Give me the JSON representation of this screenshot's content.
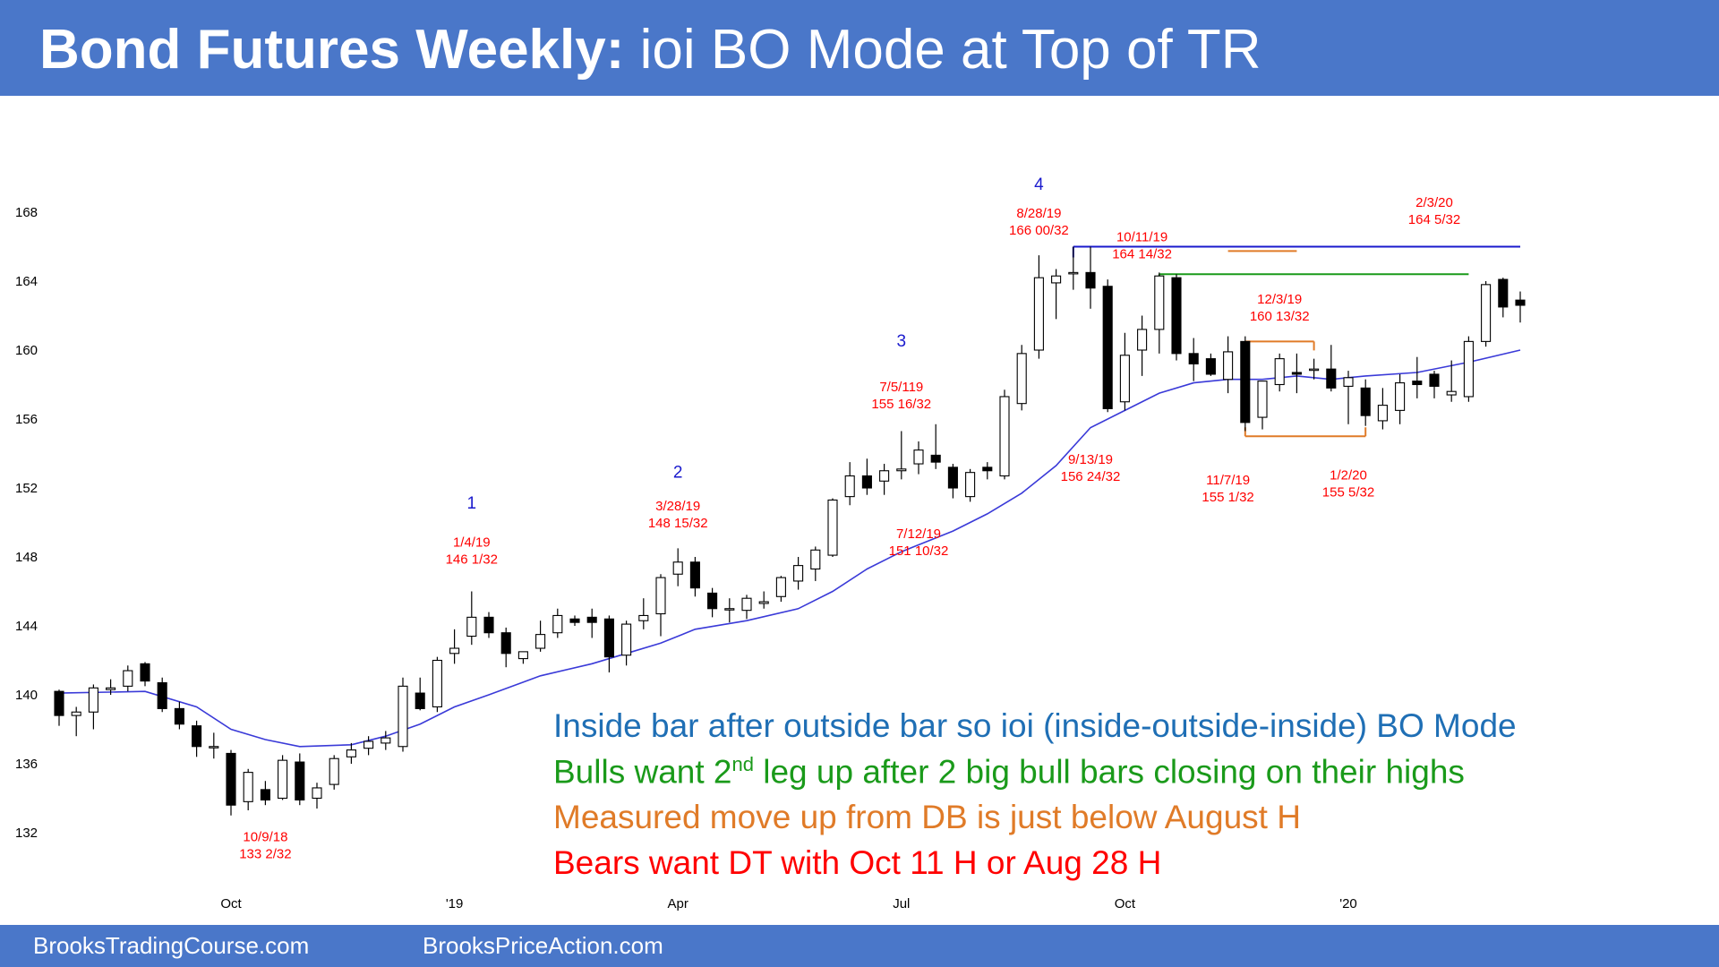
{
  "header": {
    "title_bold": "Bond Futures Weekly:",
    "title_rest": "ioi BO Mode at Top of TR"
  },
  "footer": {
    "link_left": "BrooksTradingCourse.com",
    "link_right": "BrooksPriceAction.com"
  },
  "commentary": {
    "line1": "Inside bar after outside bar so ioi (inside-outside-inside) BO Mode",
    "line2_pre": "Bulls want 2",
    "line2_sup": "nd",
    "line2_post": " leg up after 2 big bull bars closing on their highs",
    "line3": "Measured move up from DB is just below August H",
    "line4": "Bears want DT with Oct 11 H or Aug 28 H",
    "colors": {
      "line1": "#1f6fb5",
      "line2": "#1a9a1a",
      "line3": "#e07b28",
      "line4": "#ff0000"
    }
  },
  "chart_data": {
    "type": "candlestick",
    "title": "Bond Futures Weekly",
    "ylim": [
      130,
      171
    ],
    "yticks": [
      132,
      136,
      140,
      144,
      148,
      152,
      156,
      160,
      164,
      168
    ],
    "xticks": [
      {
        "label": "Oct",
        "bar": 10
      },
      {
        "label": "'19",
        "bar": 23
      },
      {
        "label": "Apr",
        "bar": 36
      },
      {
        "label": "Jul",
        "bar": 49
      },
      {
        "label": "Oct",
        "bar": 62
      },
      {
        "label": "'20",
        "bar": 75
      }
    ],
    "colors": {
      "bar": "#000000",
      "ema": "#3a3ad8",
      "annotation": "#ff0000",
      "leg_number": "#1a1acd",
      "resistance_aug": "#1a1acd",
      "resistance_oct": "#1a9a1a",
      "range": "#e07b28"
    },
    "bars": [
      [
        140.2,
        140.3,
        138.2,
        138.8
      ],
      [
        138.8,
        139.3,
        137.6,
        139.0
      ],
      [
        139.0,
        140.6,
        138.0,
        140.4
      ],
      [
        140.3,
        140.9,
        140.0,
        140.4
      ],
      [
        140.5,
        141.7,
        140.2,
        141.4
      ],
      [
        141.8,
        141.9,
        140.5,
        140.8
      ],
      [
        140.7,
        141.0,
        139.0,
        139.2
      ],
      [
        139.2,
        139.6,
        138.0,
        138.3
      ],
      [
        138.2,
        138.5,
        136.4,
        137.0
      ],
      [
        137.0,
        137.8,
        136.3,
        137.0
      ],
      [
        136.6,
        136.8,
        133.0,
        133.6
      ],
      [
        133.8,
        135.7,
        133.3,
        135.5
      ],
      [
        134.5,
        135.0,
        133.6,
        133.9
      ],
      [
        134.0,
        136.5,
        133.9,
        136.2
      ],
      [
        136.1,
        136.6,
        133.6,
        133.9
      ],
      [
        134.0,
        134.9,
        133.4,
        134.6
      ],
      [
        134.8,
        136.5,
        134.5,
        136.3
      ],
      [
        136.4,
        137.2,
        136.0,
        136.8
      ],
      [
        136.9,
        137.6,
        136.5,
        137.3
      ],
      [
        137.2,
        137.9,
        136.8,
        137.5
      ],
      [
        137.0,
        141.0,
        136.7,
        140.5
      ],
      [
        140.1,
        141.0,
        139.1,
        139.2
      ],
      [
        139.3,
        142.2,
        139.0,
        142.0
      ],
      [
        142.4,
        143.8,
        141.8,
        142.7
      ],
      [
        143.4,
        146.0,
        142.9,
        144.5
      ],
      [
        144.5,
        144.8,
        143.3,
        143.6
      ],
      [
        143.6,
        143.9,
        141.6,
        142.4
      ],
      [
        142.1,
        142.5,
        141.8,
        142.5
      ],
      [
        142.7,
        144.3,
        142.5,
        143.5
      ],
      [
        143.6,
        145.0,
        143.3,
        144.6
      ],
      [
        144.4,
        144.6,
        144.0,
        144.2
      ],
      [
        144.5,
        145.0,
        143.3,
        144.2
      ],
      [
        144.4,
        144.6,
        141.3,
        142.2
      ],
      [
        142.3,
        144.3,
        141.7,
        144.1
      ],
      [
        144.3,
        145.6,
        143.8,
        144.6
      ],
      [
        144.7,
        147.0,
        143.4,
        146.8
      ],
      [
        147.0,
        148.5,
        146.3,
        147.7
      ],
      [
        147.7,
        148.0,
        145.7,
        146.2
      ],
      [
        145.9,
        146.2,
        144.5,
        145.0
      ],
      [
        145.0,
        145.6,
        144.2,
        145.0
      ],
      [
        144.9,
        145.8,
        144.4,
        145.6
      ],
      [
        145.3,
        146.0,
        145.0,
        145.4
      ],
      [
        145.7,
        146.9,
        145.4,
        146.8
      ],
      [
        146.6,
        148.0,
        146.1,
        147.5
      ],
      [
        147.3,
        148.6,
        146.6,
        148.4
      ],
      [
        148.1,
        151.4,
        148.0,
        151.3
      ],
      [
        151.5,
        153.5,
        151.0,
        152.7
      ],
      [
        152.7,
        153.7,
        151.6,
        152.0
      ],
      [
        152.4,
        153.4,
        151.6,
        153.0
      ],
      [
        153.0,
        155.3,
        152.5,
        153.1
      ],
      [
        153.4,
        154.7,
        152.8,
        154.2
      ],
      [
        153.9,
        155.7,
        153.1,
        153.5
      ],
      [
        153.2,
        153.4,
        151.4,
        152.0
      ],
      [
        151.5,
        153.1,
        151.2,
        152.9
      ],
      [
        153.2,
        153.5,
        152.5,
        153.0
      ],
      [
        152.7,
        157.7,
        152.5,
        157.3
      ],
      [
        156.9,
        160.3,
        156.5,
        159.8
      ],
      [
        160.0,
        165.5,
        159.5,
        164.2
      ],
      [
        163.9,
        164.7,
        161.8,
        164.3
      ],
      [
        164.5,
        166.0,
        163.5,
        164.5
      ],
      [
        164.5,
        166.0,
        162.4,
        163.6
      ],
      [
        163.7,
        164.1,
        156.4,
        156.6
      ],
      [
        157.0,
        161.0,
        156.5,
        159.7
      ],
      [
        160.0,
        162.0,
        158.5,
        161.2
      ],
      [
        161.2,
        164.5,
        159.8,
        164.3
      ],
      [
        164.2,
        164.4,
        159.4,
        159.8
      ],
      [
        159.8,
        160.7,
        158.2,
        159.2
      ],
      [
        159.5,
        159.8,
        158.5,
        158.6
      ],
      [
        158.3,
        160.8,
        157.5,
        159.9
      ],
      [
        160.5,
        160.8,
        155.3,
        155.8
      ],
      [
        156.1,
        157.8,
        155.4,
        158.2
      ],
      [
        158.0,
        159.8,
        157.6,
        159.5
      ],
      [
        158.7,
        159.8,
        157.5,
        158.6
      ],
      [
        158.9,
        159.5,
        158.3,
        158.9
      ],
      [
        158.9,
        160.3,
        157.6,
        157.8
      ],
      [
        157.9,
        158.8,
        155.7,
        158.4
      ],
      [
        157.8,
        158.3,
        155.6,
        156.2
      ],
      [
        155.9,
        157.8,
        155.4,
        156.8
      ],
      [
        156.5,
        158.6,
        155.7,
        158.1
      ],
      [
        158.2,
        159.6,
        157.2,
        158.0
      ],
      [
        158.6,
        158.8,
        157.2,
        157.9
      ],
      [
        157.4,
        159.4,
        157.0,
        157.6
      ],
      [
        157.3,
        160.8,
        157.0,
        160.5
      ],
      [
        160.5,
        164.0,
        160.2,
        163.8
      ],
      [
        164.1,
        164.2,
        161.9,
        162.5
      ],
      [
        162.9,
        163.4,
        161.6,
        162.6
      ]
    ],
    "ema_20": [
      [
        0,
        140.1
      ],
      [
        5,
        140.2
      ],
      [
        8,
        139.3
      ],
      [
        10,
        138.0
      ],
      [
        12,
        137.4
      ],
      [
        14,
        137.0
      ],
      [
        17,
        137.1
      ],
      [
        19,
        137.6
      ],
      [
        21,
        138.3
      ],
      [
        23,
        139.3
      ],
      [
        25,
        140.0
      ],
      [
        28,
        141.1
      ],
      [
        31,
        141.8
      ],
      [
        33,
        142.4
      ],
      [
        35,
        143.0
      ],
      [
        37,
        143.8
      ],
      [
        40,
        144.3
      ],
      [
        43,
        145.0
      ],
      [
        45,
        146.0
      ],
      [
        47,
        147.3
      ],
      [
        49,
        148.3
      ],
      [
        52,
        149.5
      ],
      [
        54,
        150.5
      ],
      [
        56,
        151.7
      ],
      [
        58,
        153.3
      ],
      [
        60,
        155.5
      ],
      [
        62,
        156.5
      ],
      [
        64,
        157.5
      ],
      [
        66,
        158.1
      ],
      [
        68,
        158.3
      ],
      [
        70,
        158.3
      ],
      [
        72,
        158.5
      ],
      [
        74,
        158.3
      ],
      [
        76,
        158.5
      ],
      [
        79,
        158.7
      ],
      [
        82,
        159.3
      ],
      [
        85,
        160.0
      ]
    ],
    "lines": [
      {
        "name": "aug-high",
        "y": 166.0,
        "from": 59,
        "to": 85
      },
      {
        "name": "oct-high",
        "y": 164.4,
        "from": 64,
        "to": 82
      },
      {
        "name": "mm-target",
        "y": 165.75,
        "from": 68,
        "to": 72
      },
      {
        "name": "range-top",
        "y": 160.5,
        "from": 69,
        "to": 73
      },
      {
        "name": "range-bottom",
        "y": 155.0,
        "from": 69,
        "to": 76
      }
    ],
    "leg_numbers": [
      {
        "label": "1",
        "bar": 24,
        "y": 150.8
      },
      {
        "label": "2",
        "bar": 36,
        "y": 152.6
      },
      {
        "label": "3",
        "bar": 49,
        "y": 160.2
      },
      {
        "label": "4",
        "bar": 57,
        "y": 169.3
      }
    ],
    "annotations": [
      {
        "lines": [
          "1/4/19",
          "146 1/32"
        ],
        "bar": 24,
        "y": 148.6
      },
      {
        "lines": [
          "3/28/19",
          "148 15/32"
        ],
        "bar": 36,
        "y": 150.7
      },
      {
        "lines": [
          "7/5/119",
          "155 16/32"
        ],
        "bar": 49,
        "y": 157.6
      },
      {
        "lines": [
          "7/12/19",
          "151 10/32"
        ],
        "bar": 50,
        "y": 149.1
      },
      {
        "lines": [
          "8/28/19",
          "166 00/32"
        ],
        "bar": 57,
        "y": 167.7
      },
      {
        "lines": [
          "9/13/19",
          "156 24/32"
        ],
        "bar": 60,
        "y": 153.4
      },
      {
        "lines": [
          "10/11/19",
          "164 14/32"
        ],
        "bar": 63,
        "y": 166.3
      },
      {
        "lines": [
          "11/7/19",
          "155 1/32"
        ],
        "bar": 68,
        "y": 152.2
      },
      {
        "lines": [
          "12/3/19",
          "160 13/32"
        ],
        "bar": 71,
        "y": 162.7
      },
      {
        "lines": [
          "1/2/20",
          "155 5/32"
        ],
        "bar": 75,
        "y": 152.5
      },
      {
        "lines": [
          "2/3/20",
          "164 5/32"
        ],
        "bar": 80,
        "y": 168.3
      },
      {
        "lines": [
          "10/9/18",
          "133 2/32"
        ],
        "bar": 12,
        "y": 131.5
      }
    ]
  }
}
